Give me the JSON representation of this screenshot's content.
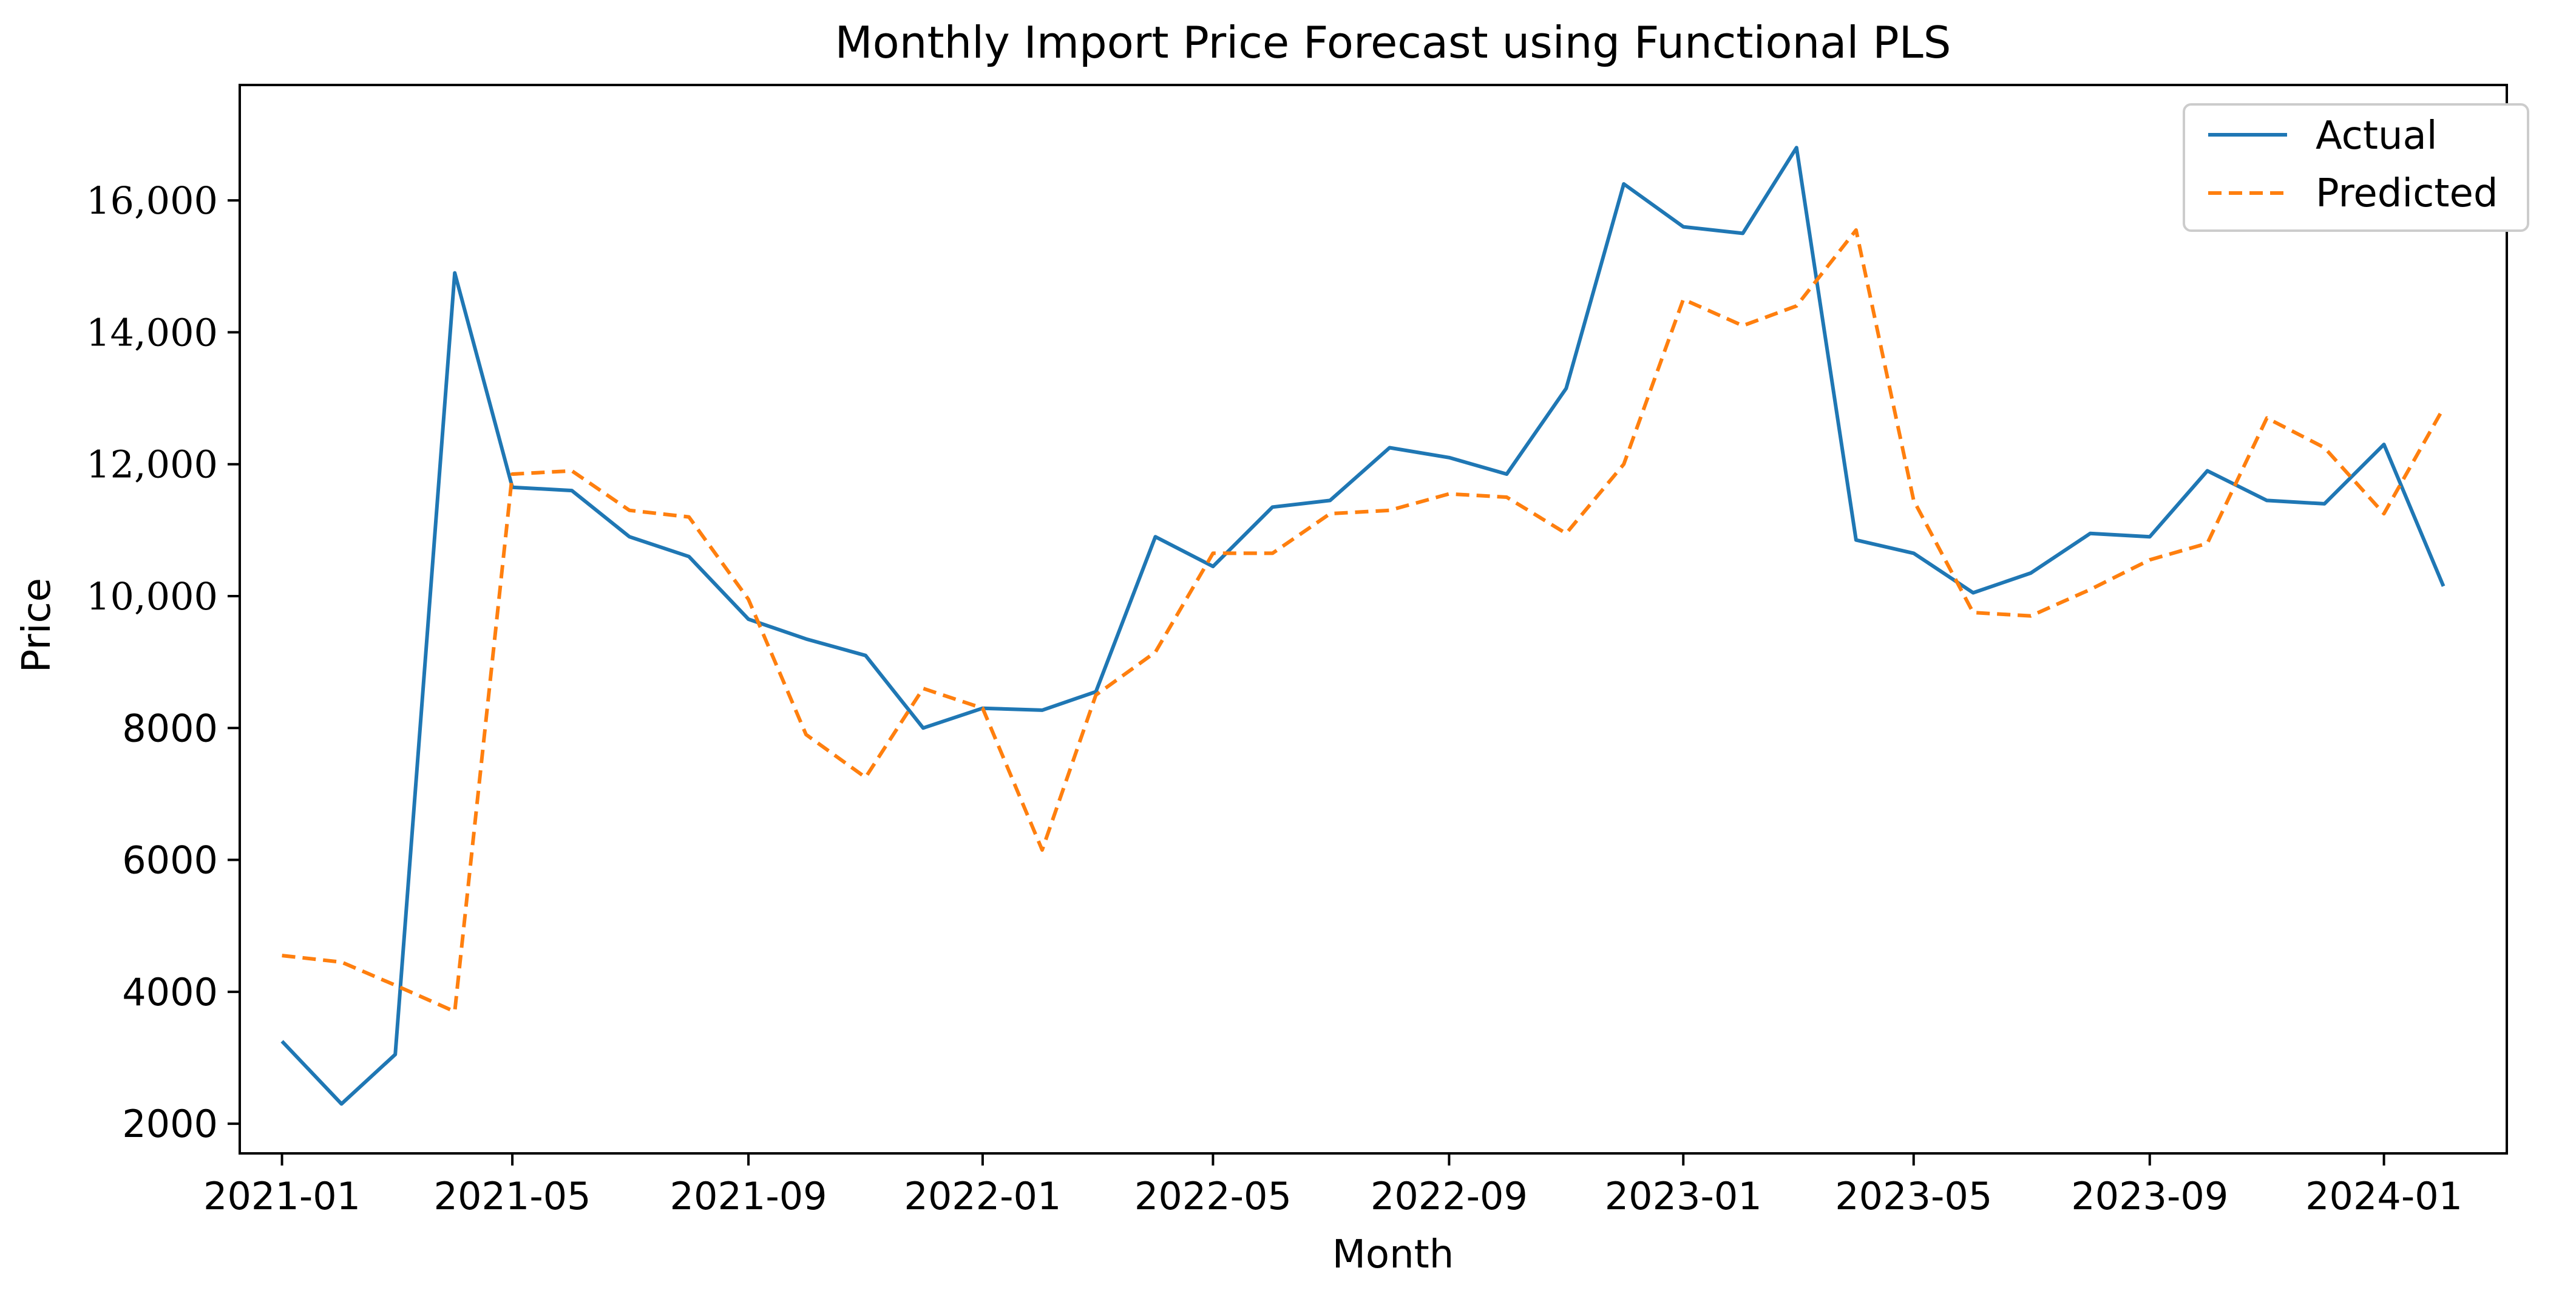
{
  "chart_data": {
    "type": "line",
    "title": "Monthly Import Price Forecast using Functional PLS",
    "xlabel": "Month",
    "ylabel": "Price",
    "x": [
      "2021-01",
      "2021-02",
      "2021-03",
      "2021-04",
      "2021-05",
      "2021-06",
      "2021-07",
      "2021-08",
      "2021-09",
      "2021-10",
      "2021-11",
      "2021-12",
      "2022-01",
      "2022-02",
      "2022-03",
      "2022-04",
      "2022-05",
      "2022-06",
      "2022-07",
      "2022-08",
      "2022-09",
      "2022-10",
      "2022-11",
      "2022-12",
      "2023-01",
      "2023-02",
      "2023-03",
      "2023-04",
      "2023-05",
      "2023-06",
      "2023-07",
      "2023-08",
      "2023-09",
      "2023-10",
      "2023-11",
      "2023-12",
      "2024-01",
      "2024-02"
    ],
    "series": [
      {
        "name": "Actual",
        "color": "#1f77b4",
        "style": "solid",
        "values": [
          3250,
          2300,
          3050,
          14900,
          11650,
          11600,
          10900,
          10600,
          9650,
          9350,
          9100,
          8000,
          8300,
          8270,
          8550,
          10900,
          10450,
          11350,
          11450,
          12250,
          12100,
          11850,
          13150,
          16250,
          15600,
          15500,
          16800,
          10850,
          10650,
          10050,
          10350,
          10950,
          10900,
          11900,
          11450,
          11400,
          12300,
          10150
        ]
      },
      {
        "name": "Predicted",
        "color": "#ff7f0e",
        "style": "dashed",
        "values": [
          4550,
          4450,
          4100,
          3700,
          11850,
          11900,
          11300,
          11200,
          9950,
          7900,
          7250,
          8600,
          8300,
          6150,
          8500,
          9150,
          10650,
          10650,
          11250,
          11300,
          11550,
          11500,
          10950,
          12000,
          14500,
          14100,
          14400,
          15550,
          11450,
          9750,
          9700,
          10100,
          10550,
          10800,
          12700,
          12250,
          11250,
          12850
        ]
      }
    ],
    "xticks": [
      "2021-01",
      "2021-05",
      "2021-09",
      "2022-01",
      "2022-05",
      "2022-09",
      "2023-01",
      "2023-05",
      "2023-09",
      "2024-01"
    ],
    "yticks": [
      {
        "value": 2000,
        "label": "2000"
      },
      {
        "value": 4000,
        "label": "4000"
      },
      {
        "value": 6000,
        "label": "6000"
      },
      {
        "value": 8000,
        "label": "8000"
      },
      {
        "value": 10000,
        "label": "10,000"
      },
      {
        "value": 12000,
        "label": "12,000"
      },
      {
        "value": 14000,
        "label": "14,000"
      },
      {
        "value": 16000,
        "label": "16,000"
      }
    ],
    "ylim": [
      1550,
      17750
    ],
    "xlim": [
      "2020-12-10",
      "2024-03-05"
    ],
    "grid": false,
    "legend": "top-right"
  }
}
